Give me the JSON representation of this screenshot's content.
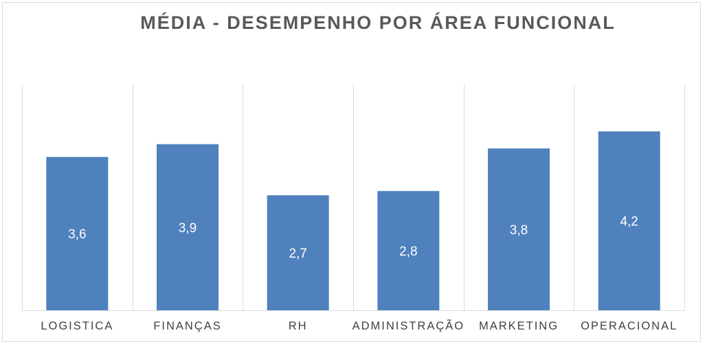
{
  "chart_data": {
    "type": "bar",
    "title": "MÉDIA - DESEMPENHO POR ÁREA FUNCIONAL",
    "categories": [
      "LOGISTICA",
      "FINANÇAS",
      "RH",
      "ADMINISTRAÇÃO",
      "MARKETING",
      "OPERACIONAL"
    ],
    "values": [
      3.6,
      3.9,
      2.7,
      2.8,
      3.8,
      4.2
    ],
    "data_labels": [
      "3,6",
      "3,9",
      "2,7",
      "2,8",
      "3,8",
      "4,2"
    ],
    "xlabel": "",
    "ylabel": "",
    "ylim": [
      0,
      5
    ],
    "grid": "vertical category separators",
    "legend": "none",
    "bar_color": "#4F81BD",
    "label_color": "#ffffff",
    "grid_color": "#D9D9D9",
    "axis_label_color": "#404040"
  }
}
